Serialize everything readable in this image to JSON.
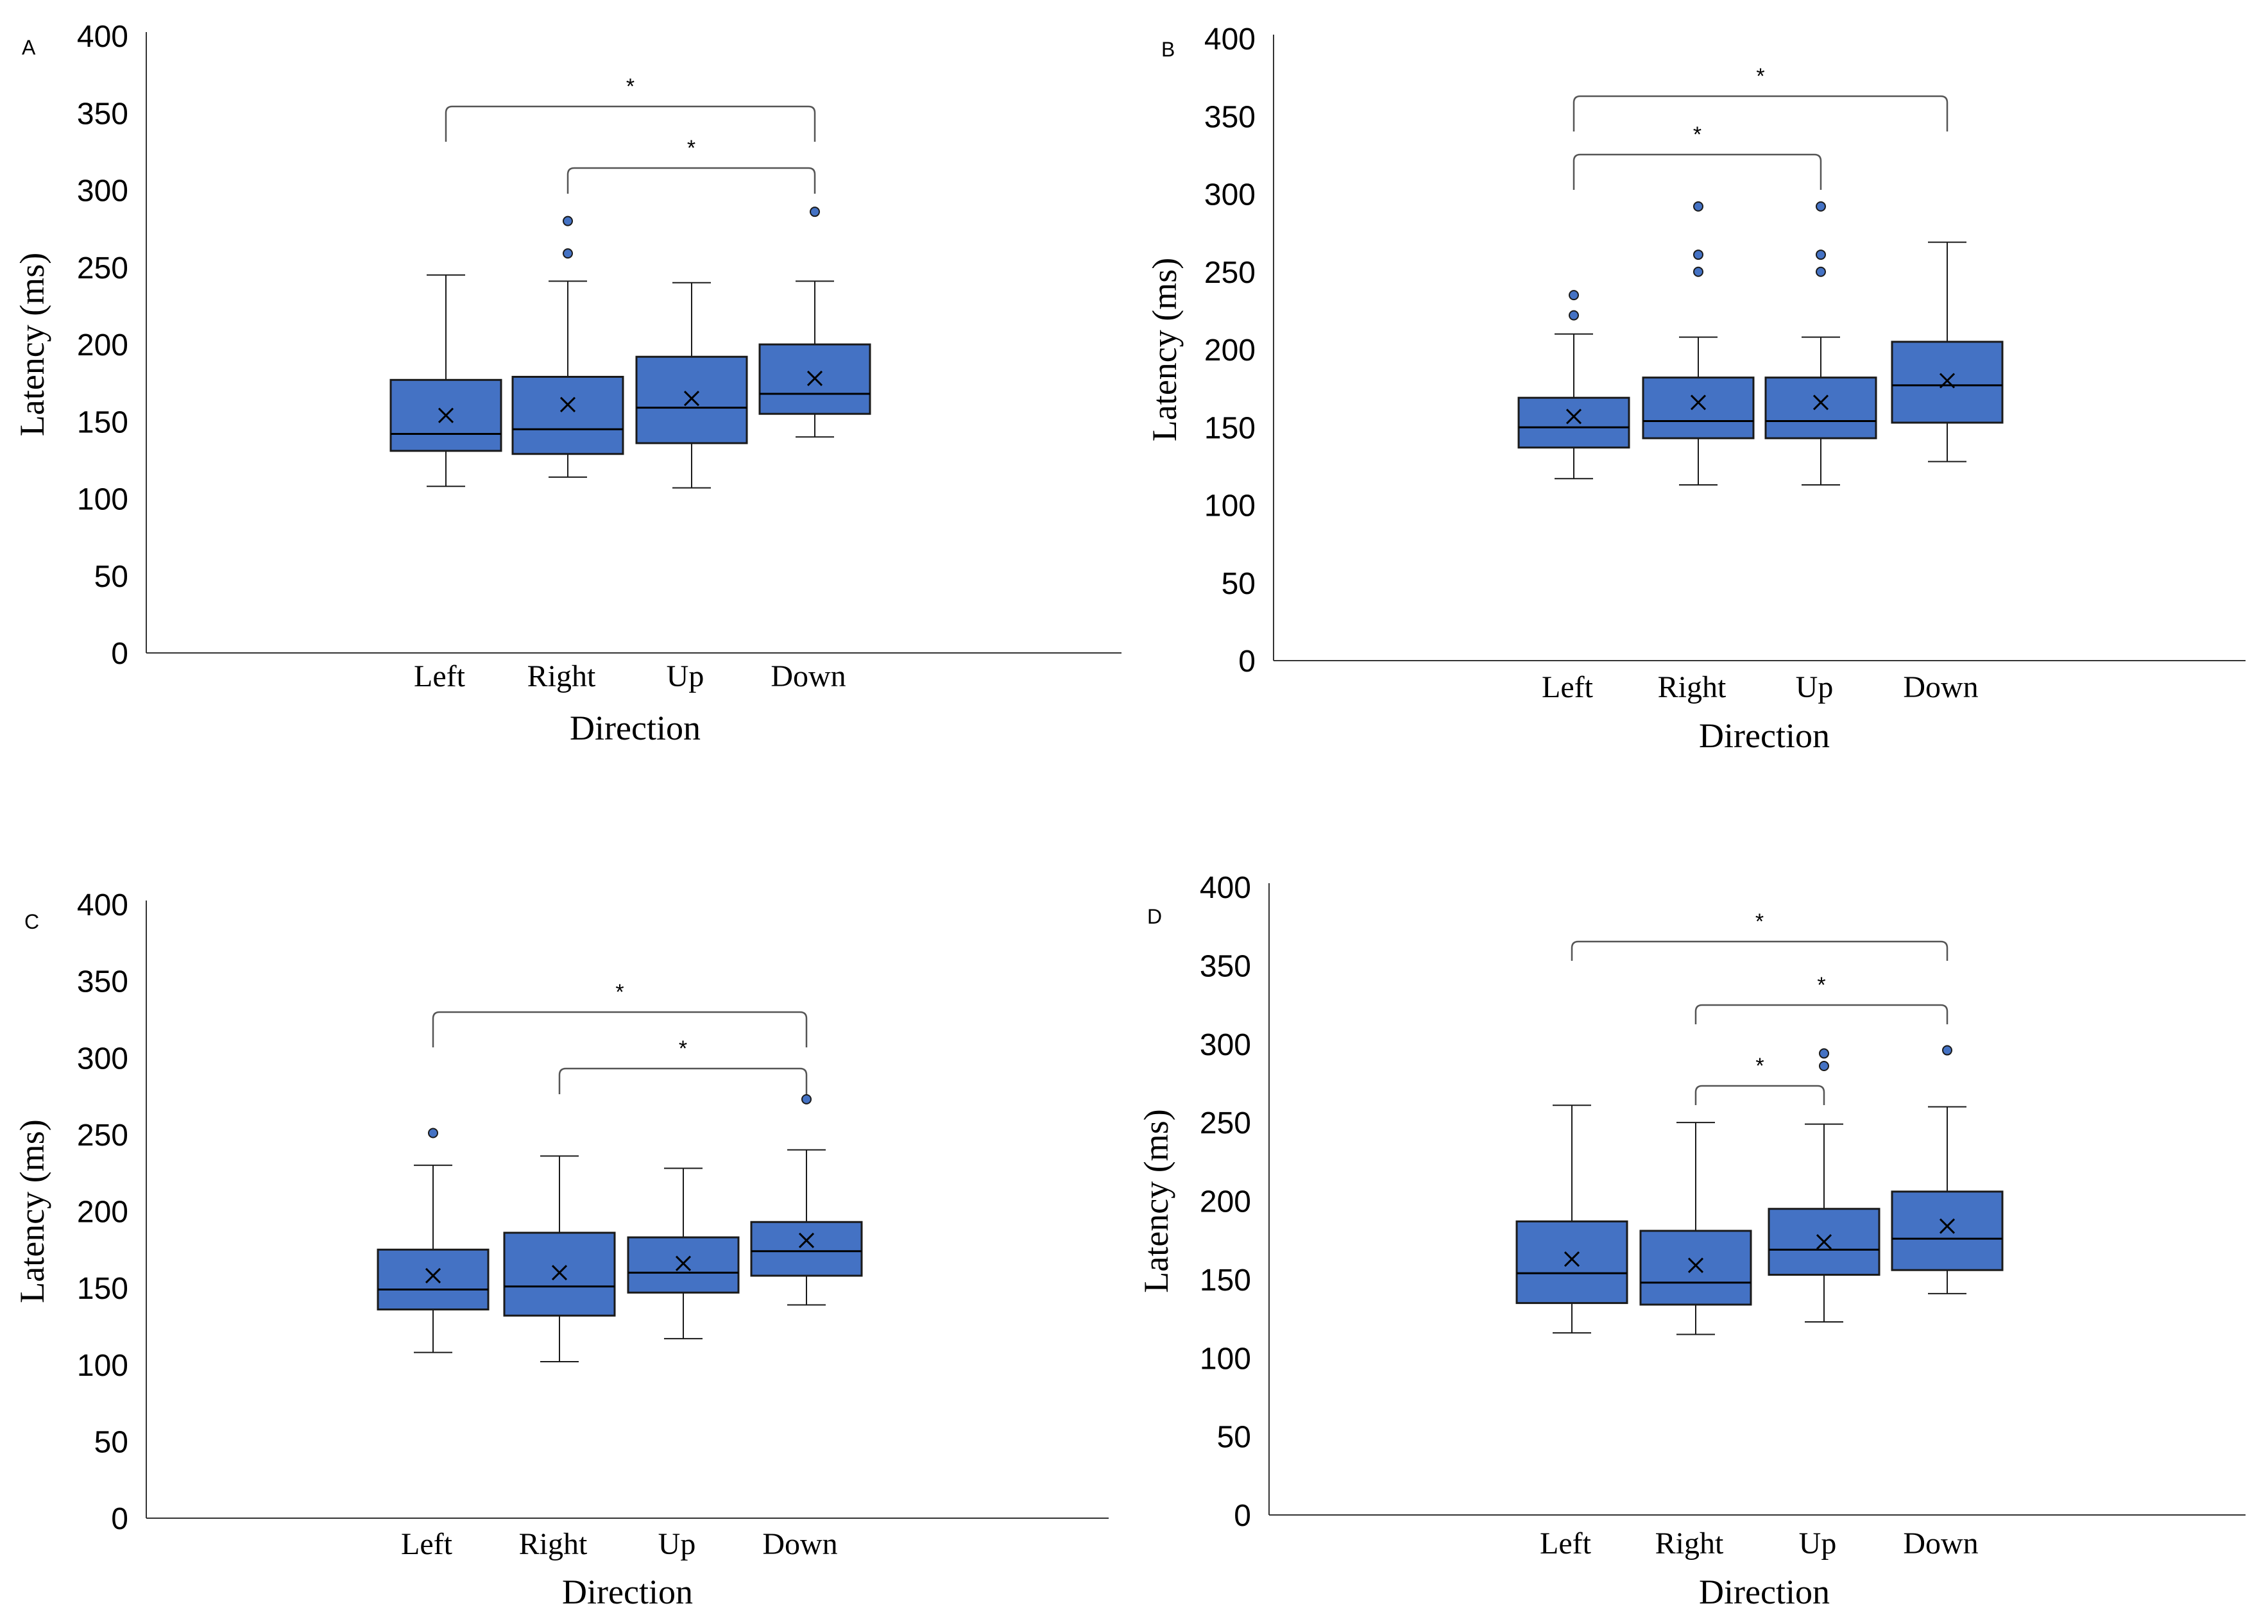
{
  "figure": {
    "box_color": "#4472C4",
    "outline_color": "#1a1a1a"
  },
  "chart_data": [
    {
      "panel": "A",
      "type": "box",
      "xlabel": "Direction",
      "ylabel": "Latency (ms)",
      "ylim": [
        0,
        400
      ],
      "yticks": [
        "0",
        "50",
        "100",
        "150",
        "200",
        "250",
        "300",
        "350",
        "400"
      ],
      "categories": [
        "Left",
        "Right",
        "Up",
        "Down"
      ],
      "boxes": [
        {
          "min": 108,
          "q1": 131,
          "median": 142,
          "q3": 177,
          "max": 245,
          "mean": 154,
          "outliers": []
        },
        {
          "min": 114,
          "q1": 129,
          "median": 145,
          "q3": 179,
          "max": 241,
          "mean": 161,
          "outliers": [
            259,
            280
          ]
        },
        {
          "min": 107,
          "q1": 136,
          "median": 159,
          "q3": 192,
          "max": 240,
          "mean": 165,
          "outliers": []
        },
        {
          "min": 140,
          "q1": 155,
          "median": 168,
          "q3": 200,
          "max": 241,
          "mean": 178,
          "outliers": [
            286
          ]
        }
      ],
      "significance": [
        {
          "from": 0,
          "to": 3,
          "label": "*"
        },
        {
          "from": 1,
          "to": 3,
          "label": "*"
        }
      ]
    },
    {
      "panel": "B",
      "type": "box",
      "xlabel": "Direction",
      "ylabel": "Latency (ms)",
      "ylim": [
        0,
        400
      ],
      "yticks": [
        "0",
        "50",
        "100",
        "150",
        "200",
        "250",
        "300",
        "350",
        "400"
      ],
      "categories": [
        "Left",
        "Right",
        "Up",
        "Down"
      ],
      "boxes": [
        {
          "min": 117,
          "q1": 137,
          "median": 150,
          "q3": 169,
          "max": 210,
          "mean": 157,
          "outliers": [
            222,
            235
          ]
        },
        {
          "min": 113,
          "q1": 143,
          "median": 154,
          "q3": 182,
          "max": 208,
          "mean": 166,
          "outliers": [
            250,
            261,
            292
          ]
        },
        {
          "min": 113,
          "q1": 143,
          "median": 154,
          "q3": 182,
          "max": 208,
          "mean": 166,
          "outliers": [
            250,
            261,
            292
          ]
        },
        {
          "min": 128,
          "q1": 153,
          "median": 177,
          "q3": 205,
          "max": 269,
          "mean": 180,
          "outliers": []
        }
      ],
      "significance": [
        {
          "from": 0,
          "to": 3,
          "label": "*"
        },
        {
          "from": 0,
          "to": 2,
          "label": "*"
        }
      ]
    },
    {
      "panel": "C",
      "type": "box",
      "xlabel": "Direction",
      "ylabel": "Latency (ms)",
      "ylim": [
        0,
        400
      ],
      "yticks": [
        "0",
        "50",
        "100",
        "150",
        "200",
        "250",
        "300",
        "350",
        "400"
      ],
      "categories": [
        "Left",
        "Right",
        "Up",
        "Down"
      ],
      "boxes": [
        {
          "min": 108,
          "q1": 136,
          "median": 149,
          "q3": 175,
          "max": 230,
          "mean": 158,
          "outliers": [
            251
          ]
        },
        {
          "min": 102,
          "q1": 132,
          "median": 151,
          "q3": 186,
          "max": 236,
          "mean": 160,
          "outliers": []
        },
        {
          "min": 117,
          "q1": 147,
          "median": 160,
          "q3": 183,
          "max": 228,
          "mean": 166,
          "outliers": []
        },
        {
          "min": 139,
          "q1": 158,
          "median": 174,
          "q3": 193,
          "max": 240,
          "mean": 181,
          "outliers": [
            273
          ]
        }
      ],
      "significance": [
        {
          "from": 0,
          "to": 3,
          "label": "*"
        },
        {
          "from": 1,
          "to": 3,
          "label": "*"
        }
      ]
    },
    {
      "panel": "D",
      "type": "box",
      "xlabel": "Direction",
      "ylabel": "Latency (ms)",
      "ylim": [
        0,
        400
      ],
      "yticks": [
        "0",
        "50",
        "100",
        "150",
        "200",
        "250",
        "300",
        "350",
        "400"
      ],
      "categories": [
        "Left",
        "Right",
        "Up",
        "Down"
      ],
      "boxes": [
        {
          "min": 116,
          "q1": 135,
          "median": 154,
          "q3": 187,
          "max": 261,
          "mean": 163,
          "outliers": []
        },
        {
          "min": 115,
          "q1": 134,
          "median": 148,
          "q3": 181,
          "max": 250,
          "mean": 159,
          "outliers": []
        },
        {
          "min": 123,
          "q1": 153,
          "median": 169,
          "q3": 195,
          "max": 249,
          "mean": 174,
          "outliers": [
            286,
            294
          ]
        },
        {
          "min": 141,
          "q1": 156,
          "median": 176,
          "q3": 206,
          "max": 260,
          "mean": 184,
          "outliers": [
            296
          ]
        }
      ],
      "significance": [
        {
          "from": 0,
          "to": 3,
          "label": "*"
        },
        {
          "from": 1,
          "to": 3,
          "label": "*"
        },
        {
          "from": 1,
          "to": 2,
          "label": "*"
        }
      ]
    }
  ]
}
